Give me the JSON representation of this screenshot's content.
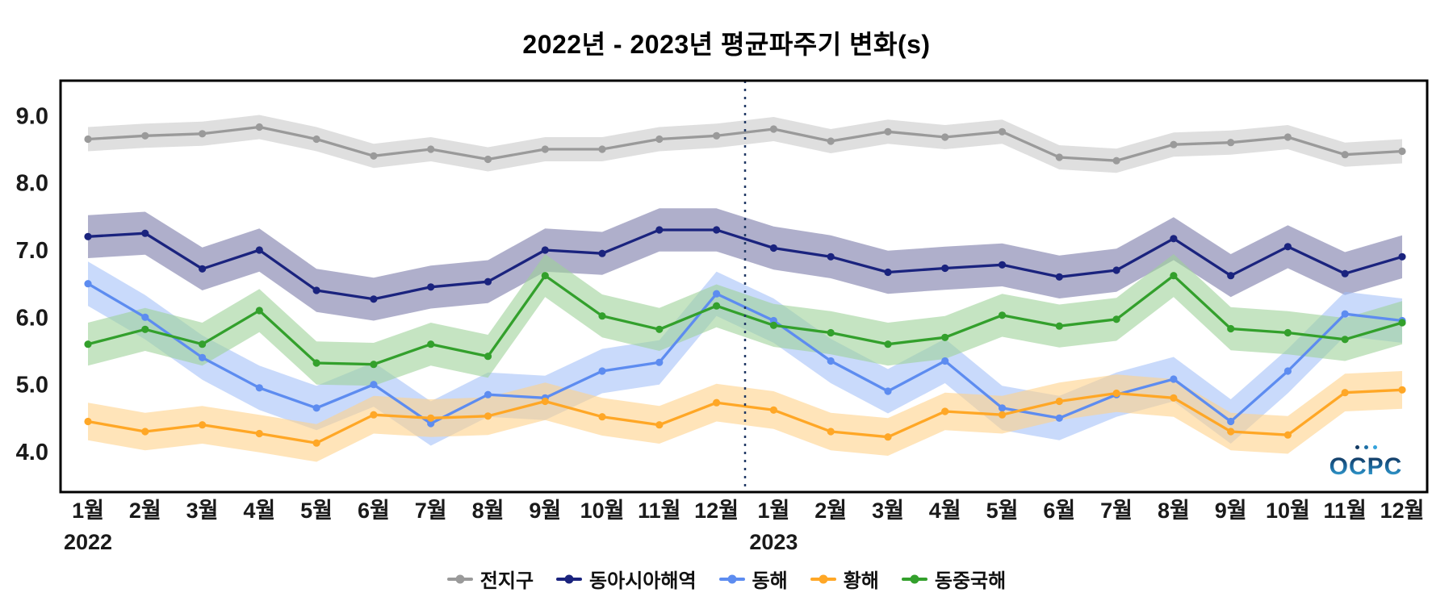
{
  "logo_text": "OCPC",
  "chart_data": {
    "type": "line",
    "title": "2022년 - 2023년 평균파주기 변화(s)",
    "xlabel": "",
    "ylabel": "",
    "grid": false,
    "legend_position": "bottom",
    "x_axis": {
      "categories": [
        "1월",
        "2월",
        "3월",
        "4월",
        "5월",
        "6월",
        "7월",
        "8월",
        "9월",
        "10월",
        "11월",
        "12월",
        "1월",
        "2월",
        "3월",
        "4월",
        "5월",
        "6월",
        "7월",
        "8월",
        "9월",
        "10월",
        "11월",
        "12월"
      ],
      "year_labels": [
        {
          "text": "2022",
          "month_index": 0
        },
        {
          "text": "2023",
          "month_index": 12
        }
      ],
      "separator_after_index": 11
    },
    "y_axis": {
      "ticks": [
        4.0,
        5.0,
        6.0,
        7.0,
        8.0,
        9.0
      ],
      "min": 3.4,
      "max": 9.52
    },
    "series": [
      {
        "name": "전지구",
        "color": "#9a9a9a",
        "band_color": "#c4c4c4",
        "band_opacity": 0.55,
        "band_halfwidth": 0.18,
        "values": [
          8.65,
          8.7,
          8.73,
          8.83,
          8.65,
          8.4,
          8.5,
          8.35,
          8.5,
          8.5,
          8.65,
          8.7,
          8.8,
          8.62,
          8.76,
          8.68,
          8.76,
          8.38,
          8.33,
          8.57,
          8.6,
          8.68,
          8.42,
          8.47
        ]
      },
      {
        "name": "동아시아해역",
        "color": "#1a237e",
        "band_color": "#7a7aa8",
        "band_opacity": 0.6,
        "band_halfwidth": 0.32,
        "values": [
          7.2,
          7.25,
          6.72,
          7.0,
          6.4,
          6.27,
          6.45,
          6.53,
          7.0,
          6.95,
          7.3,
          7.3,
          7.03,
          6.9,
          6.67,
          6.73,
          6.78,
          6.6,
          6.7,
          7.17,
          6.62,
          7.05,
          6.65,
          6.9
        ]
      },
      {
        "name": "동해",
        "color": "#5d8cf0",
        "band_color": "#9dbcf7",
        "band_opacity": 0.55,
        "band_halfwidth": 0.33,
        "values": [
          6.5,
          6.0,
          5.4,
          4.95,
          4.65,
          5.0,
          4.42,
          4.85,
          4.8,
          5.2,
          5.33,
          6.35,
          5.95,
          5.35,
          4.9,
          5.35,
          4.65,
          4.5,
          4.85,
          5.08,
          4.45,
          5.2,
          6.05,
          5.95
        ]
      },
      {
        "name": "황해",
        "color": "#ffa726",
        "band_color": "#ffd28a",
        "band_opacity": 0.6,
        "band_halfwidth": 0.28,
        "values": [
          4.45,
          4.3,
          4.4,
          4.27,
          4.13,
          4.55,
          4.5,
          4.53,
          4.75,
          4.52,
          4.4,
          4.73,
          4.62,
          4.3,
          4.22,
          4.6,
          4.55,
          4.75,
          4.87,
          4.8,
          4.3,
          4.25,
          4.88,
          4.92
        ]
      },
      {
        "name": "동중국해",
        "color": "#33a02c",
        "band_color": "#9fd29a",
        "band_opacity": 0.6,
        "band_halfwidth": 0.32,
        "values": [
          5.6,
          5.82,
          5.6,
          6.1,
          5.32,
          5.3,
          5.6,
          5.42,
          6.62,
          6.02,
          5.82,
          6.17,
          5.88,
          5.77,
          5.6,
          5.7,
          6.03,
          5.87,
          5.97,
          6.62,
          5.83,
          5.77,
          5.67,
          5.92
        ]
      }
    ]
  }
}
